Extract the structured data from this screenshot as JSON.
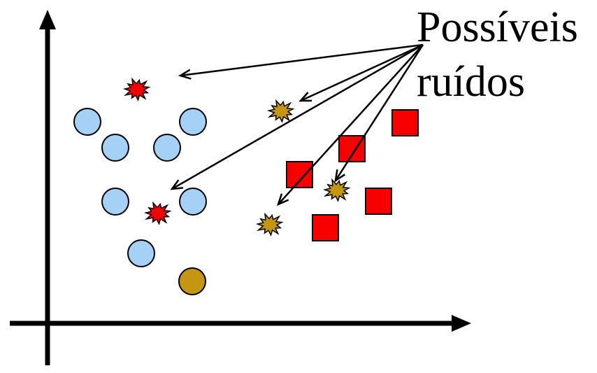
{
  "annotation": {
    "line1": "Possíveis",
    "line2": "ruídos"
  },
  "colors": {
    "axis": "#000000",
    "circle_fill": "#a6d1f7",
    "noise_circle_fill": "#c59514",
    "square_fill": "#f80000",
    "noise_red_fill": "#f80000",
    "noise_gold_fill": "#c59514",
    "outline": "#000000",
    "arrow": "#000000"
  },
  "legend_items": [
    {
      "shape": "circle",
      "meaning": "class-a-instance"
    },
    {
      "shape": "square",
      "meaning": "class-b-instance"
    },
    {
      "shape": "burst",
      "meaning": "possible-noise"
    }
  ]
}
